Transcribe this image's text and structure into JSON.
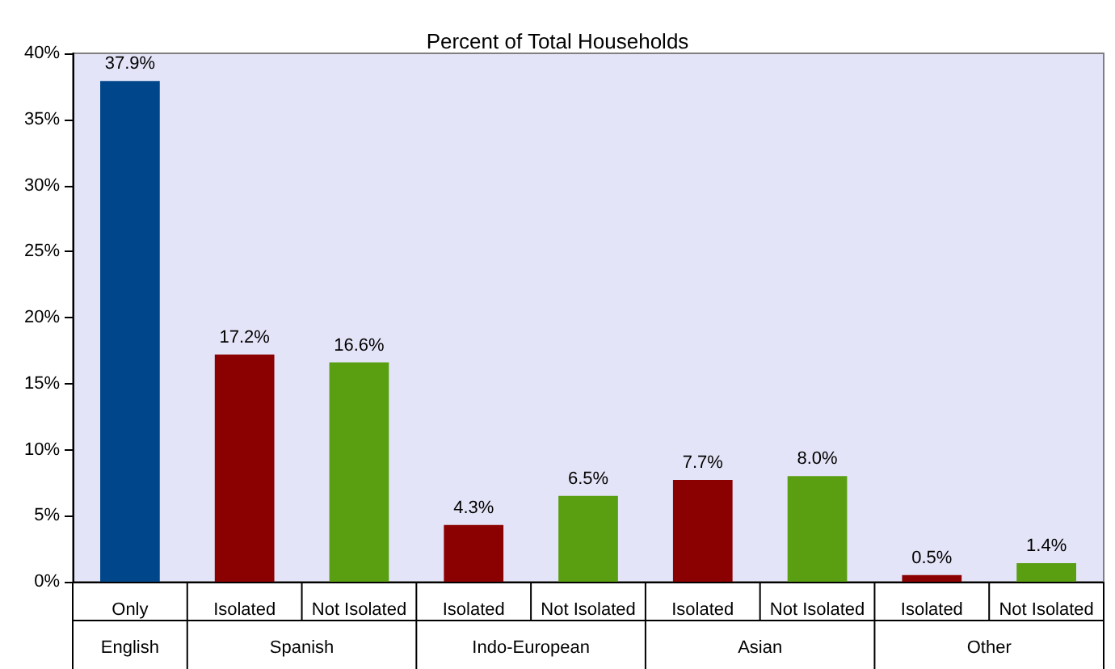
{
  "chart_data": {
    "type": "bar",
    "title": "Percent of Total Households",
    "categories": [
      "Only",
      "Isolated",
      "Not Isolated",
      "Isolated",
      "Not Isolated",
      "Isolated",
      "Not Isolated",
      "Isolated",
      "Not Isolated"
    ],
    "values": [
      37.9,
      17.2,
      16.6,
      4.3,
      6.5,
      7.7,
      8.0,
      0.5,
      1.4
    ],
    "colors": [
      "#00468b",
      "#8b0000",
      "#5a9e12",
      "#8b0000",
      "#5a9e12",
      "#8b0000",
      "#5a9e12",
      "#8b0000",
      "#5a9e12"
    ],
    "value_labels": [
      "37.9%",
      "17.2%",
      "16.6%",
      "4.3%",
      "6.5%",
      "7.7%",
      "8.0%",
      "0.5%",
      "1.4%"
    ],
    "annotations": [
      "English",
      "Spanish",
      "Indo-European",
      "Asian",
      "Other"
    ],
    "ylim": [
      0,
      40
    ],
    "yticks": [
      {
        "value": 0,
        "label": "0%"
      },
      {
        "value": 5,
        "label": "5%"
      },
      {
        "value": 10,
        "label": "10%"
      },
      {
        "value": 15,
        "label": "15%"
      },
      {
        "value": 20,
        "label": "20%"
      },
      {
        "value": 25,
        "label": "25%"
      },
      {
        "value": 30,
        "label": "30%"
      },
      {
        "value": 35,
        "label": "35%"
      },
      {
        "value": 40,
        "label": "40%"
      }
    ],
    "grid": false
  }
}
